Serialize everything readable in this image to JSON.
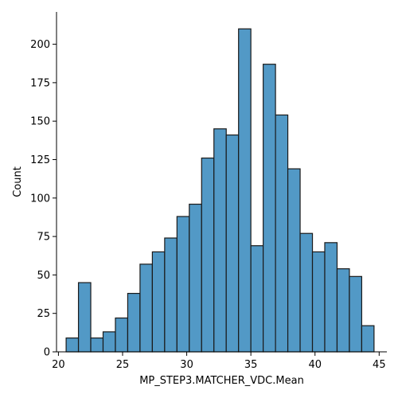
{
  "chart_data": {
    "type": "bar",
    "title": "",
    "xlabel": "MP_STEP3.MATCHER_VDC.Mean",
    "ylabel": "Count",
    "bar_color": "#5299c6",
    "edge_color": "#1a1a1a",
    "xlim": [
      19.85,
      45.6
    ],
    "ylim": [
      0,
      221
    ],
    "bin_start": 20.6,
    "bin_width": 0.96,
    "counts": [
      9,
      45,
      9,
      13,
      22,
      38,
      57,
      65,
      74,
      88,
      96,
      126,
      145,
      141,
      210,
      69,
      187,
      154,
      119,
      77,
      65,
      71,
      54,
      49,
      17
    ],
    "xticks": [
      {
        "value": 20,
        "label": "20"
      },
      {
        "value": 25,
        "label": "25"
      },
      {
        "value": 30,
        "label": "30"
      },
      {
        "value": 35,
        "label": "35"
      },
      {
        "value": 40,
        "label": "40"
      },
      {
        "value": 45,
        "label": "45"
      }
    ],
    "yticks": [
      {
        "value": 0,
        "label": "0"
      },
      {
        "value": 25,
        "label": "25"
      },
      {
        "value": 50,
        "label": "50"
      },
      {
        "value": 75,
        "label": "75"
      },
      {
        "value": 100,
        "label": "100"
      },
      {
        "value": 125,
        "label": "125"
      },
      {
        "value": 150,
        "label": "150"
      },
      {
        "value": 175,
        "label": "175"
      },
      {
        "value": 200,
        "label": "200"
      }
    ],
    "grid": false,
    "spines": [
      "left",
      "bottom"
    ]
  }
}
